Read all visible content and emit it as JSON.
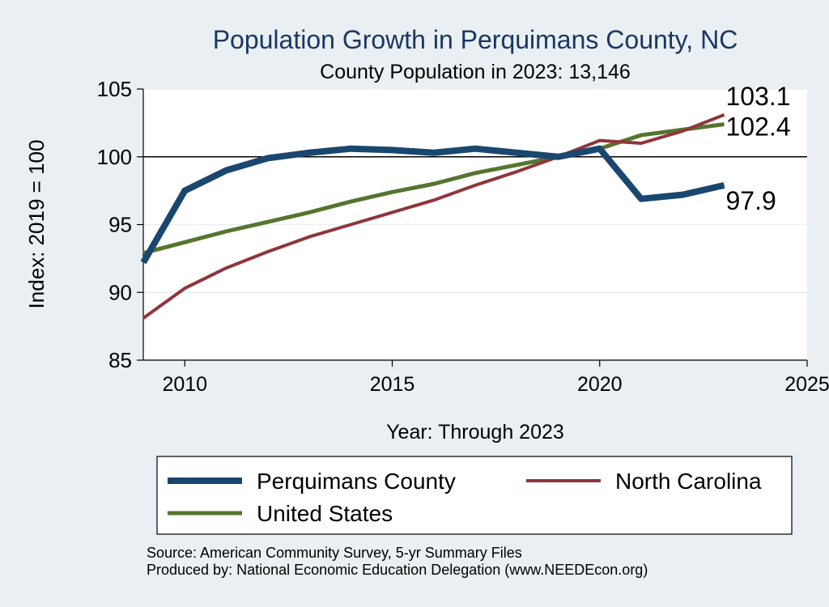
{
  "chart_data": {
    "type": "line",
    "title": "Population Growth in Perquimans County, NC",
    "subtitle": "County Population in 2023: 13,146",
    "xlabel": "Year: Through 2023",
    "ylabel": "Index: 2019 = 100",
    "xlim": [
      2009,
      2025
    ],
    "ylim": [
      85,
      105
    ],
    "xticks": [
      2010,
      2015,
      2020,
      2025
    ],
    "yticks": [
      85,
      90,
      95,
      100,
      105
    ],
    "reference_line": 100,
    "grid": true,
    "legend_position": "bottom",
    "x": [
      2009,
      2010,
      2011,
      2012,
      2013,
      2014,
      2015,
      2016,
      2017,
      2018,
      2019,
      2020,
      2021,
      2022,
      2023
    ],
    "series": [
      {
        "name": "Perquimans  County",
        "color": "#1a476f",
        "values": [
          92.2,
          97.5,
          99.0,
          99.9,
          100.3,
          100.6,
          100.5,
          100.3,
          100.6,
          100.3,
          100.0,
          100.6,
          96.9,
          97.2,
          97.9
        ],
        "end_label": "97.9"
      },
      {
        "name": "North Carolina",
        "color": "#90353b",
        "values": [
          88.1,
          90.3,
          91.8,
          93.0,
          94.1,
          95.0,
          95.9,
          96.8,
          97.9,
          98.9,
          100.0,
          101.2,
          101.0,
          101.9,
          103.1
        ],
        "end_label": "103.1"
      },
      {
        "name": "United States",
        "color": "#55752f",
        "values": [
          92.9,
          93.7,
          94.5,
          95.2,
          95.9,
          96.7,
          97.4,
          98.0,
          98.8,
          99.4,
          100.0,
          100.6,
          101.6,
          102.0,
          102.4
        ],
        "end_label": "102.4"
      }
    ],
    "source": "Source: American Community Survey, 5-yr Summary Files",
    "producer": "Produced by: National Economic Education Delegation (www.NEEDEcon.org)"
  }
}
